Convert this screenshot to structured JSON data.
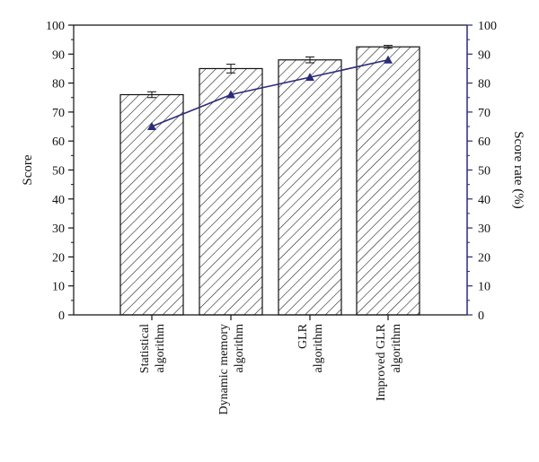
{
  "chart_data": {
    "type": "bar",
    "categories": [
      [
        "Statistical",
        "algorithm"
      ],
      [
        "Dynamic memory",
        "algorithm"
      ],
      [
        "GLR",
        "algorithm"
      ],
      [
        "Improved GLR",
        "algorithm"
      ]
    ],
    "series": [
      {
        "kind": "bar",
        "axis": "left",
        "values": [
          76,
          85,
          88,
          92.5
        ],
        "error": [
          1,
          1.5,
          1,
          0.5
        ]
      },
      {
        "kind": "line",
        "axis": "right",
        "values": [
          65,
          76,
          82,
          88
        ],
        "color": "#2b2b7a"
      }
    ],
    "ylabel": "Score",
    "y2label": "Score rate (%)",
    "ylim": [
      0,
      100
    ],
    "y2lim": [
      0,
      100
    ],
    "yticks": [
      0,
      10,
      20,
      30,
      40,
      50,
      60,
      70,
      80,
      90,
      100
    ],
    "y2ticks": [
      0,
      10,
      20,
      30,
      40,
      50,
      60,
      70,
      80,
      90,
      100
    ],
    "grid": false,
    "colors": {
      "axis": "#111111",
      "right_axis": "#2b2b7a",
      "bar_fill": "#ffffff",
      "hatch": "#111111",
      "line": "#2b2b7a"
    }
  }
}
